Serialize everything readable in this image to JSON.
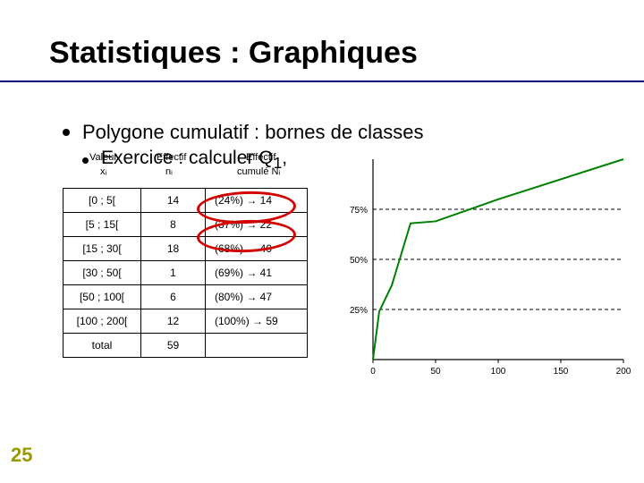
{
  "title": "Statistiques : Graphiques",
  "bullet1": "Polygone cumulatif : bornes de classes",
  "bullet2_pre": "Exercice : calculer Q",
  "bullet2_sub": "1",
  "bullet2_post": ",",
  "overlay": {
    "valeur": "Valeur",
    "effectif1": "Effectif",
    "effectif2": "Effectif",
    "xi": "xᵢ",
    "ni": "nᵢ",
    "Ni": "cumulé Nᵢ"
  },
  "table": {
    "rows": [
      {
        "c1": "[0 ; 5[",
        "c2": "14",
        "c3": "(24%) → 14"
      },
      {
        "c1": "[5 ; 15[",
        "c2": "8",
        "c3": "(37%) → 22"
      },
      {
        "c1": "[15 ; 30[",
        "c2": "18",
        "c3": "(68%) → 40"
      },
      {
        "c1": "[30 ; 50[",
        "c2": "1",
        "c3": "(69%) → 41"
      },
      {
        "c1": "[50 ; 100[",
        "c2": "6",
        "c3": "(80%) → 47"
      },
      {
        "c1": "[100 ; 200[",
        "c2": "12",
        "c3": "(100%) → 59"
      },
      {
        "c1": "total",
        "c2": "59",
        "c3": ""
      }
    ]
  },
  "chart": {
    "type": "line",
    "background_color": "#ffffff",
    "axis_color": "#000000",
    "grid_color": "#000000",
    "line_color": "#008000",
    "line_width": 2,
    "xlim": [
      0,
      200
    ],
    "ylim": [
      0,
      1
    ],
    "xticks": [
      0,
      50,
      100,
      150,
      200
    ],
    "xtick_labels": [
      "0",
      "50",
      "100",
      "150",
      "200"
    ],
    "yticks": [
      0.25,
      0.5,
      0.75
    ],
    "ytick_labels": [
      "25%",
      "50%",
      "75%"
    ],
    "points": [
      {
        "x": 0,
        "y": 0.0
      },
      {
        "x": 5,
        "y": 0.24
      },
      {
        "x": 15,
        "y": 0.37
      },
      {
        "x": 30,
        "y": 0.68
      },
      {
        "x": 50,
        "y": 0.69
      },
      {
        "x": 100,
        "y": 0.8
      },
      {
        "x": 200,
        "y": 1.0
      }
    ],
    "tick_fontsize": 10
  },
  "slide_number": "25",
  "colors": {
    "title_rule": "#000080",
    "slidenum": "#9a9a00",
    "ellipse": "#d40000"
  }
}
